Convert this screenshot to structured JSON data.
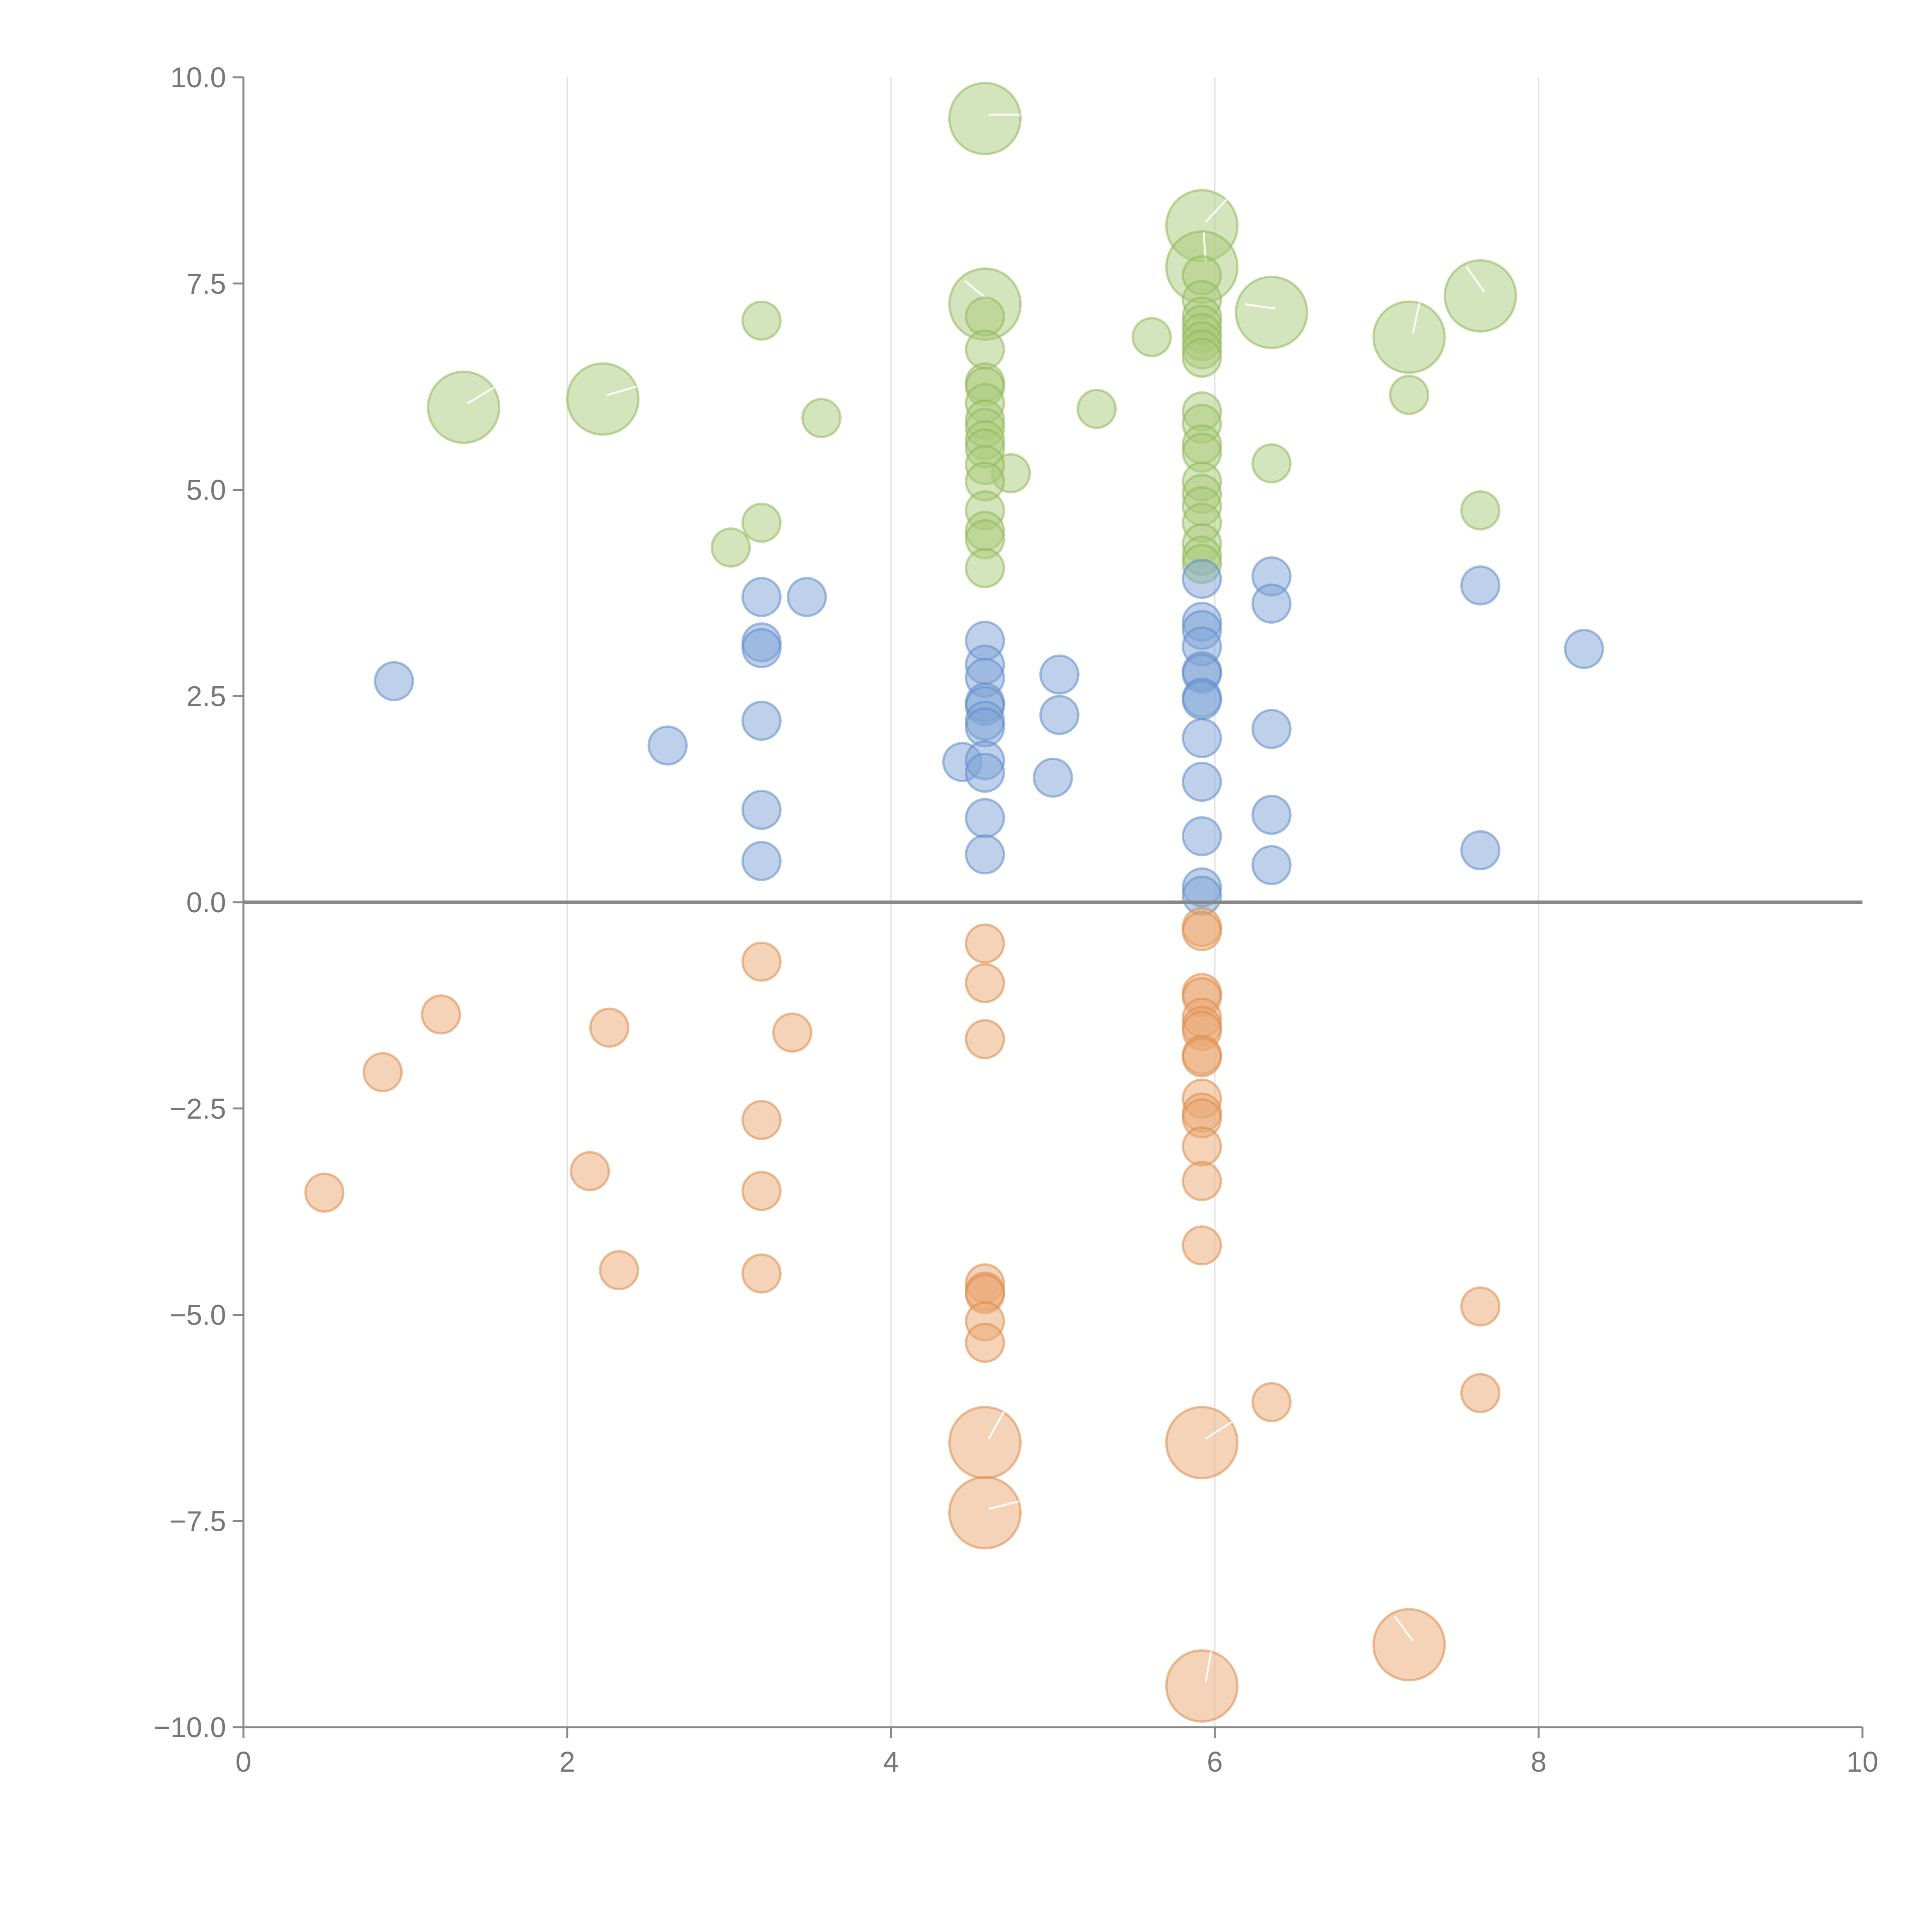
{
  "chart_data": {
    "type": "scatter",
    "title": "",
    "xlabel": "",
    "ylabel": "",
    "xlim": [
      0,
      10
    ],
    "ylim": [
      -10,
      10
    ],
    "x_ticks": [
      0,
      2,
      4,
      6,
      8,
      10
    ],
    "x_tick_labels": [
      "0",
      "2",
      "4",
      "6",
      "8",
      "10"
    ],
    "y_ticks": [
      -10,
      -7.5,
      -5,
      -2.5,
      0,
      2.5,
      5,
      7.5,
      10
    ],
    "y_tick_labels": [
      "−10.0",
      "−7.5",
      "−5.0",
      "−2.5",
      "0.0",
      "2.5",
      "5.0",
      "7.5",
      "10.0"
    ],
    "grid": "vertical",
    "zero_line": true,
    "legend": "none",
    "series": [
      {
        "name": "green",
        "fill": "#a9c97a",
        "stroke": "#8fb85a",
        "points": [
          [
            4.58,
            9.5,
            2
          ],
          [
            5.92,
            8.2,
            2
          ],
          [
            5.92,
            7.7,
            2
          ],
          [
            4.58,
            7.25,
            2
          ],
          [
            6.35,
            7.15,
            2
          ],
          [
            7.64,
            7.35,
            2
          ],
          [
            7.2,
            6.85,
            2
          ],
          [
            1.36,
            6.0,
            2
          ],
          [
            2.22,
            6.1,
            2
          ],
          [
            3.2,
            7.05,
            1
          ],
          [
            5.61,
            6.85,
            1
          ],
          [
            3.57,
            5.87,
            1
          ],
          [
            5.27,
            5.98,
            1
          ],
          [
            4.74,
            5.2,
            1
          ],
          [
            3.2,
            4.6,
            1
          ],
          [
            3.01,
            4.3,
            1
          ],
          [
            6.35,
            5.32,
            1
          ],
          [
            7.2,
            6.15,
            1
          ],
          [
            7.64,
            4.75,
            1
          ],
          [
            4.58,
            7.1,
            1
          ],
          [
            4.58,
            6.7,
            1
          ],
          [
            4.58,
            6.3,
            1
          ],
          [
            4.58,
            6.25,
            1
          ],
          [
            4.58,
            6.05,
            1
          ],
          [
            4.58,
            5.85,
            1
          ],
          [
            4.58,
            5.75,
            1
          ],
          [
            4.58,
            5.6,
            1
          ],
          [
            4.58,
            5.5,
            1
          ],
          [
            4.58,
            5.3,
            1
          ],
          [
            4.58,
            5.1,
            1
          ],
          [
            4.58,
            4.75,
            1
          ],
          [
            4.58,
            4.5,
            1
          ],
          [
            4.58,
            4.4,
            1
          ],
          [
            4.58,
            4.05,
            1
          ],
          [
            5.92,
            7.6,
            1
          ],
          [
            5.92,
            7.3,
            1
          ],
          [
            5.92,
            7.1,
            1
          ],
          [
            5.92,
            7.0,
            1
          ],
          [
            5.92,
            6.9,
            1
          ],
          [
            5.92,
            6.8,
            1
          ],
          [
            5.92,
            6.7,
            1
          ],
          [
            5.92,
            6.6,
            1
          ],
          [
            5.92,
            5.95,
            1
          ],
          [
            5.92,
            5.8,
            1
          ],
          [
            5.92,
            5.55,
            1
          ],
          [
            5.92,
            5.45,
            1
          ],
          [
            5.92,
            5.1,
            1
          ],
          [
            5.92,
            4.95,
            1
          ],
          [
            5.92,
            4.8,
            1
          ],
          [
            5.92,
            4.6,
            1
          ],
          [
            5.92,
            4.35,
            1
          ],
          [
            5.92,
            4.2,
            1
          ],
          [
            5.92,
            4.1,
            1
          ]
        ]
      },
      {
        "name": "blue",
        "fill": "#7fa4d6",
        "stroke": "#5f8cc8",
        "points": [
          [
            0.93,
            2.68,
            1
          ],
          [
            2.62,
            1.9,
            1
          ],
          [
            3.2,
            3.7,
            1
          ],
          [
            3.2,
            3.15,
            1
          ],
          [
            3.2,
            3.08,
            1
          ],
          [
            3.2,
            2.2,
            1
          ],
          [
            3.2,
            1.12,
            1
          ],
          [
            3.2,
            0.5,
            1
          ],
          [
            3.48,
            3.7,
            1
          ],
          [
            4.44,
            1.7,
            1
          ],
          [
            4.58,
            3.17,
            1
          ],
          [
            4.58,
            2.88,
            1
          ],
          [
            4.58,
            2.72,
            1
          ],
          [
            4.58,
            2.42,
            1
          ],
          [
            4.58,
            2.38,
            1
          ],
          [
            4.58,
            2.2,
            1
          ],
          [
            4.58,
            2.12,
            1
          ],
          [
            4.58,
            1.72,
            1
          ],
          [
            4.58,
            1.57,
            1
          ],
          [
            4.58,
            1.02,
            1
          ],
          [
            4.58,
            0.58,
            1
          ],
          [
            5.04,
            2.76,
            1
          ],
          [
            5.04,
            2.27,
            1
          ],
          [
            5.0,
            1.51,
            1
          ],
          [
            5.92,
            3.92,
            1
          ],
          [
            5.92,
            3.4,
            1
          ],
          [
            5.92,
            3.3,
            1
          ],
          [
            5.92,
            3.1,
            1
          ],
          [
            5.92,
            2.8,
            1
          ],
          [
            5.92,
            2.77,
            1
          ],
          [
            5.92,
            2.48,
            1
          ],
          [
            5.92,
            2.45,
            1
          ],
          [
            5.92,
            1.99,
            1
          ],
          [
            5.92,
            1.46,
            1
          ],
          [
            5.92,
            0.8,
            1
          ],
          [
            5.92,
            0.18,
            1
          ],
          [
            5.92,
            0.08,
            1
          ],
          [
            6.35,
            3.95,
            1
          ],
          [
            6.35,
            3.62,
            1
          ],
          [
            6.35,
            2.1,
            1
          ],
          [
            6.35,
            1.06,
            1
          ],
          [
            6.35,
            0.45,
            1
          ],
          [
            7.64,
            3.84,
            1
          ],
          [
            7.64,
            0.63,
            1
          ],
          [
            8.28,
            3.07,
            1
          ]
        ]
      },
      {
        "name": "orange",
        "fill": "#eaa771",
        "stroke": "#dd8a4a",
        "points": [
          [
            0.5,
            -3.52,
            1
          ],
          [
            0.86,
            -2.06,
            1
          ],
          [
            1.22,
            -1.36,
            1
          ],
          [
            2.26,
            -1.52,
            1
          ],
          [
            2.14,
            -3.26,
            1
          ],
          [
            2.32,
            -4.46,
            1
          ],
          [
            3.2,
            -0.72,
            1
          ],
          [
            3.39,
            -1.58,
            1
          ],
          [
            3.2,
            -2.64,
            1
          ],
          [
            3.2,
            -3.5,
            1
          ],
          [
            3.2,
            -4.5,
            1
          ],
          [
            4.58,
            -0.5,
            1
          ],
          [
            4.58,
            -0.98,
            1
          ],
          [
            4.58,
            -1.66,
            1
          ],
          [
            4.58,
            -4.62,
            1
          ],
          [
            4.58,
            -4.72,
            1
          ],
          [
            4.58,
            -4.75,
            1
          ],
          [
            4.58,
            -5.08,
            1
          ],
          [
            4.58,
            -5.34,
            1
          ],
          [
            5.92,
            -0.3,
            1
          ],
          [
            5.92,
            -0.35,
            1
          ],
          [
            5.92,
            -1.1,
            1
          ],
          [
            5.92,
            -1.15,
            1
          ],
          [
            5.92,
            -1.4,
            1
          ],
          [
            5.92,
            -1.5,
            1
          ],
          [
            5.92,
            -1.56,
            1
          ],
          [
            5.92,
            -1.85,
            1
          ],
          [
            5.92,
            -1.88,
            1
          ],
          [
            5.92,
            -2.38,
            1
          ],
          [
            5.92,
            -2.55,
            1
          ],
          [
            5.92,
            -2.62,
            1
          ],
          [
            5.92,
            -2.96,
            1
          ],
          [
            5.92,
            -3.38,
            1
          ],
          [
            5.92,
            -4.16,
            1
          ],
          [
            6.35,
            -6.06,
            1
          ],
          [
            7.64,
            -4.9,
            1
          ],
          [
            7.64,
            -5.95,
            1
          ],
          [
            4.58,
            -6.55,
            2
          ],
          [
            4.58,
            -7.4,
            2
          ],
          [
            5.92,
            -6.55,
            2
          ],
          [
            5.92,
            -9.5,
            2
          ],
          [
            7.2,
            -9.0,
            2
          ]
        ]
      }
    ]
  }
}
